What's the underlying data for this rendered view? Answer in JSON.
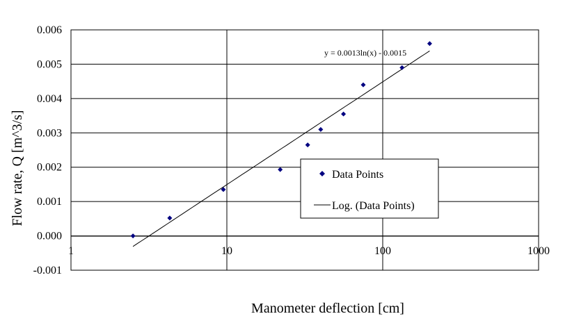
{
  "chart_data": {
    "type": "scatter",
    "xlabel": "Manometer deflection [cm]",
    "ylabel": "Flow rate, Q [m^3/s]",
    "x_scale": "log",
    "xlim": [
      1,
      1000
    ],
    "ylim": [
      -0.001,
      0.006
    ],
    "x_ticks": [
      "1",
      "10",
      "100",
      "1000"
    ],
    "y_ticks": [
      "-0.001",
      "0.000",
      "0.001",
      "0.002",
      "0.003",
      "0.004",
      "0.005",
      "0.006"
    ],
    "grid": true,
    "legend_position": "right-center",
    "series": [
      {
        "name": "Data Points",
        "color": "#000080",
        "marker": "diamond",
        "x": [
          2.5,
          4.3,
          9.5,
          22,
          33,
          40,
          56,
          75,
          133,
          200
        ],
        "y": [
          0.0,
          0.00052,
          0.00135,
          0.00193,
          0.00265,
          0.0031,
          0.00355,
          0.0044,
          0.0049,
          0.0056
        ]
      }
    ],
    "trendline": {
      "name": "Log. (Data Points)",
      "equation": "y = 0.0013ln(x) - 0.0015",
      "a": 0.0013,
      "b": -0.0015,
      "x_range": [
        2.5,
        200
      ],
      "color": "#000000"
    }
  }
}
